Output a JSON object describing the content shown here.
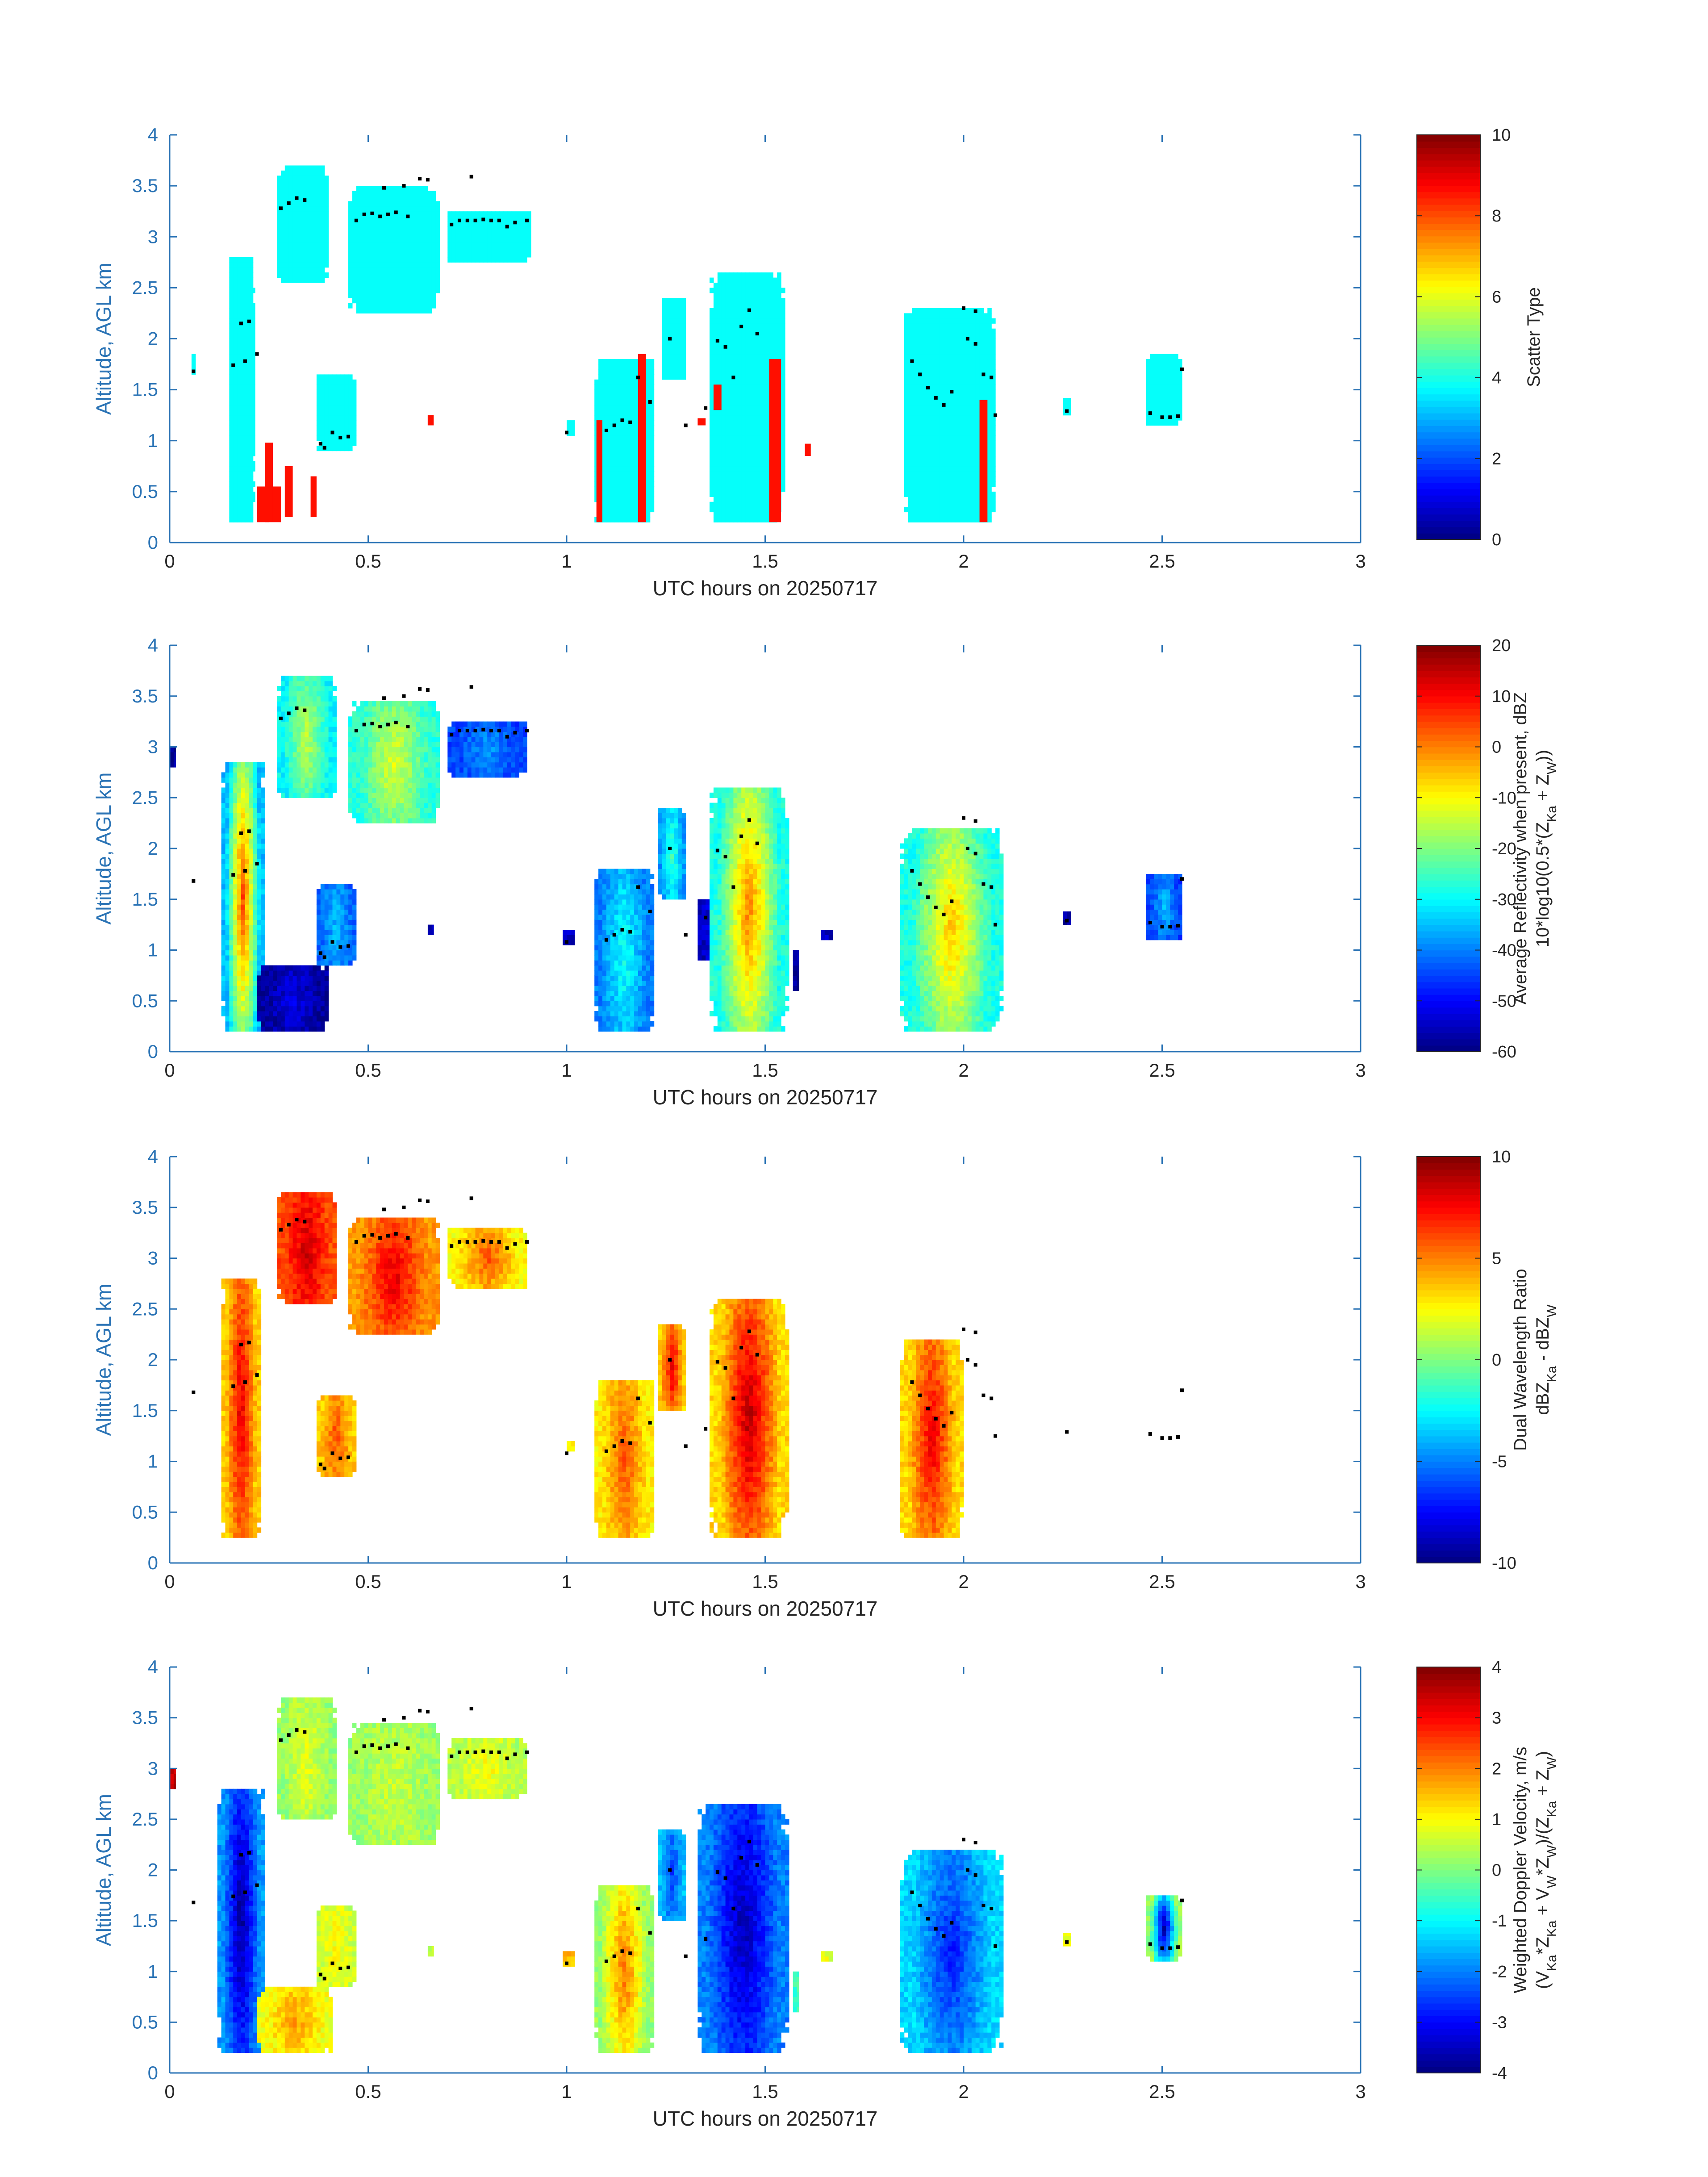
{
  "common": {
    "xlabel": "UTC hours on 20250717",
    "ylabel": "Altitude, AGL km",
    "xlim": [
      0,
      3
    ],
    "ylim": [
      0,
      4
    ],
    "xticks": [
      0,
      0.5,
      1,
      1.5,
      2,
      2.5,
      3
    ],
    "xtick_labels": [
      "0",
      "0.5",
      "1",
      "1.5",
      "2",
      "2.5",
      "3"
    ],
    "yticks": [
      0,
      0.5,
      1,
      1.5,
      2,
      2.5,
      3,
      3.5,
      4
    ],
    "ytick_labels": [
      "0",
      "0.5",
      "1",
      "1.5",
      "2",
      "2.5",
      "3",
      "3.5",
      "4"
    ],
    "colormap": "jet",
    "axis_color": "#2a73b5"
  },
  "chart_data": [
    {
      "type": "heatmap",
      "field": "scatter_type",
      "colorbar_label_lines": [
        "Scatter Type"
      ],
      "clim": [
        0,
        10
      ],
      "cb_ticks": [
        0,
        2,
        4,
        6,
        8,
        10
      ],
      "cb_tick_labels": [
        "0",
        "2",
        "4",
        "6",
        "8",
        "10"
      ],
      "regions": [
        {
          "x": [
            0.15,
            0.215
          ],
          "y": [
            0.2,
            2.8
          ],
          "value": 3.8
        },
        {
          "x": [
            0.055,
            0.065
          ],
          "y": [
            1.65,
            1.85
          ],
          "value": 3.8
        },
        {
          "x": [
            0.27,
            0.4
          ],
          "y": [
            2.55,
            3.7
          ],
          "value": 3.8
        },
        {
          "x": [
            0.45,
            0.68
          ],
          "y": [
            2.25,
            3.5
          ],
          "value": 3.8
        },
        {
          "x": [
            0.7,
            0.91
          ],
          "y": [
            2.75,
            3.25
          ],
          "value": 3.8
        },
        {
          "x": [
            0.37,
            0.47
          ],
          "y": [
            0.9,
            1.65
          ],
          "value": 3.8
        },
        {
          "x": [
            1.07,
            1.22
          ],
          "y": [
            0.2,
            1.8
          ],
          "value": 3.8
        },
        {
          "x": [
            1.24,
            1.3
          ],
          "y": [
            1.6,
            2.4
          ],
          "value": 3.8
        },
        {
          "x": [
            1.36,
            1.55
          ],
          "y": [
            0.2,
            2.65
          ],
          "value": 3.8
        },
        {
          "x": [
            1.85,
            2.08
          ],
          "y": [
            0.2,
            2.3
          ],
          "value": 3.8
        },
        {
          "x": [
            2.25,
            2.27
          ],
          "y": [
            1.25,
            1.42
          ],
          "value": 3.8
        },
        {
          "x": [
            2.46,
            2.55
          ],
          "y": [
            1.15,
            1.85
          ],
          "value": 3.8
        },
        {
          "x": [
            1.0,
            1.02
          ],
          "y": [
            1.05,
            1.2
          ],
          "value": 3.8
        }
      ],
      "patches": [
        {
          "x": [
            0.22,
            0.25
          ],
          "y": [
            0.2,
            0.55
          ],
          "value": 8.6
        },
        {
          "x": [
            0.24,
            0.26
          ],
          "y": [
            0.2,
            0.98
          ],
          "value": 8.6
        },
        {
          "x": [
            0.26,
            0.28
          ],
          "y": [
            0.2,
            0.55
          ],
          "value": 8.6
        },
        {
          "x": [
            0.29,
            0.31
          ],
          "y": [
            0.25,
            0.75
          ],
          "value": 8.6
        },
        {
          "x": [
            0.355,
            0.37
          ],
          "y": [
            0.25,
            0.65
          ],
          "value": 8.6
        },
        {
          "x": [
            0.65,
            0.665
          ],
          "y": [
            1.15,
            1.25
          ],
          "value": 8.6
        },
        {
          "x": [
            1.075,
            1.09
          ],
          "y": [
            0.2,
            1.2
          ],
          "value": 8.6
        },
        {
          "x": [
            1.18,
            1.2
          ],
          "y": [
            0.2,
            1.85
          ],
          "value": 8.6
        },
        {
          "x": [
            1.33,
            1.35
          ],
          "y": [
            1.15,
            1.22
          ],
          "value": 8.6
        },
        {
          "x": [
            1.37,
            1.39
          ],
          "y": [
            1.3,
            1.55
          ],
          "value": 8.6
        },
        {
          "x": [
            1.51,
            1.54
          ],
          "y": [
            0.2,
            1.8
          ],
          "value": 8.6
        },
        {
          "x": [
            1.6,
            1.615
          ],
          "y": [
            0.85,
            0.97
          ],
          "value": 8.6
        },
        {
          "x": [
            2.04,
            2.06
          ],
          "y": [
            0.2,
            1.4
          ],
          "value": 8.6
        }
      ]
    },
    {
      "type": "heatmap",
      "field": "average_reflectivity",
      "colorbar_label_lines": [
        "Average Reflectivity when present, dBZ",
        "10*log10(0.5*(Z_Ka + Z_W))"
      ],
      "clim": [
        -60,
        20
      ],
      "cb_ticks": [
        -60,
        -50,
        -40,
        -30,
        -20,
        -10,
        0,
        10,
        20
      ],
      "cb_tick_labels": [
        "-60",
        "-50",
        "-40",
        "-30",
        "-20",
        "-10",
        "0",
        "10",
        "20"
      ],
      "regions": [
        {
          "x": [
            0.0,
            0.015
          ],
          "y": [
            2.8,
            3.0
          ],
          "value": -58,
          "peak": -58
        },
        {
          "x": [
            0.13,
            0.24
          ],
          "y": [
            0.2,
            2.85
          ],
          "value": -35,
          "peak": 5
        },
        {
          "x": [
            0.22,
            0.4
          ],
          "y": [
            0.2,
            0.85
          ],
          "value": -58,
          "peak": -52
        },
        {
          "x": [
            0.27,
            0.42
          ],
          "y": [
            2.5,
            3.7
          ],
          "value": -30,
          "peak": -15
        },
        {
          "x": [
            0.45,
            0.68
          ],
          "y": [
            2.25,
            3.45
          ],
          "value": -27,
          "peak": -12
        },
        {
          "x": [
            0.7,
            0.9
          ],
          "y": [
            2.7,
            3.25
          ],
          "value": -45,
          "peak": -38
        },
        {
          "x": [
            0.37,
            0.47
          ],
          "y": [
            0.85,
            1.65
          ],
          "value": -42,
          "peak": -35
        },
        {
          "x": [
            0.65,
            0.665
          ],
          "y": [
            1.15,
            1.25
          ],
          "value": -55,
          "peak": -55
        },
        {
          "x": [
            0.99,
            1.02
          ],
          "y": [
            1.05,
            1.2
          ],
          "value": -55,
          "peak": -55
        },
        {
          "x": [
            1.07,
            1.22
          ],
          "y": [
            0.2,
            1.8
          ],
          "value": -40,
          "peak": -28
        },
        {
          "x": [
            1.23,
            1.3
          ],
          "y": [
            1.5,
            2.4
          ],
          "value": -38,
          "peak": -25
        },
        {
          "x": [
            1.33,
            1.45
          ],
          "y": [
            0.9,
            1.5
          ],
          "value": -55,
          "peak": -45
        },
        {
          "x": [
            1.36,
            1.56
          ],
          "y": [
            0.2,
            2.6
          ],
          "value": -28,
          "peak": 0
        },
        {
          "x": [
            1.64,
            1.67
          ],
          "y": [
            1.1,
            1.2
          ],
          "value": -55,
          "peak": -55
        },
        {
          "x": [
            1.57,
            1.585
          ],
          "y": [
            0.6,
            1.0
          ],
          "value": -58,
          "peak": -58
        },
        {
          "x": [
            1.84,
            2.1
          ],
          "y": [
            0.2,
            2.2
          ],
          "value": -28,
          "peak": -5
        },
        {
          "x": [
            2.25,
            2.27
          ],
          "y": [
            1.25,
            1.38
          ],
          "value": -58,
          "peak": -58
        },
        {
          "x": [
            2.46,
            2.55
          ],
          "y": [
            1.1,
            1.75
          ],
          "value": -45,
          "peak": -35
        }
      ]
    },
    {
      "type": "heatmap",
      "field": "dual_wavelength_ratio",
      "colorbar_label_lines": [
        "Dual Wavelength Ratio",
        "dBZ_Ka - dBZ_W"
      ],
      "clim": [
        -10,
        10
      ],
      "cb_ticks": [
        -10,
        -5,
        0,
        5,
        10
      ],
      "cb_tick_labels": [
        "-10",
        "-5",
        "0",
        "5",
        "10"
      ],
      "regions": [
        {
          "x": [
            0.13,
            0.23
          ],
          "y": [
            0.25,
            2.8
          ],
          "value": 3.5,
          "peak": 8
        },
        {
          "x": [
            0.27,
            0.42
          ],
          "y": [
            2.55,
            3.65
          ],
          "value": 6.0,
          "peak": 8.5
        },
        {
          "x": [
            0.45,
            0.68
          ],
          "y": [
            2.25,
            3.4
          ],
          "value": 4.5,
          "peak": 8
        },
        {
          "x": [
            0.7,
            0.9
          ],
          "y": [
            2.7,
            3.3
          ],
          "value": 2.5,
          "peak": 6
        },
        {
          "x": [
            0.37,
            0.47
          ],
          "y": [
            0.85,
            1.65
          ],
          "value": 3.5,
          "peak": 6
        },
        {
          "x": [
            1.0,
            1.02
          ],
          "y": [
            1.1,
            1.2
          ],
          "value": 3.0,
          "peak": 3
        },
        {
          "x": [
            1.07,
            1.22
          ],
          "y": [
            0.25,
            1.8
          ],
          "value": 2.8,
          "peak": 6
        },
        {
          "x": [
            1.23,
            1.3
          ],
          "y": [
            1.5,
            2.35
          ],
          "value": 3.5,
          "peak": 8
        },
        {
          "x": [
            1.36,
            1.56
          ],
          "y": [
            0.25,
            2.6
          ],
          "value": 3.2,
          "peak": 9
        },
        {
          "x": [
            1.84,
            2.0
          ],
          "y": [
            0.25,
            2.2
          ],
          "value": 3.2,
          "peak": 8
        }
      ]
    },
    {
      "type": "heatmap",
      "field": "weighted_doppler_velocity",
      "colorbar_label_lines": [
        "Weighted Doppler Velocity, m/s",
        "(V_Ka*Z_Ka + V_W*Z_W)/(Z_Ka + Z_W)"
      ],
      "clim": [
        -4,
        4
      ],
      "cb_ticks": [
        -4,
        -3,
        -2,
        -1,
        0,
        1,
        2,
        3,
        4
      ],
      "cb_tick_labels": [
        "-4",
        "-3",
        "-2",
        "-1",
        "0",
        "1",
        "2",
        "3",
        "4"
      ],
      "regions": [
        {
          "x": [
            0.0,
            0.015
          ],
          "y": [
            2.8,
            3.0
          ],
          "value": 3.5,
          "peak": 3.5
        },
        {
          "x": [
            0.12,
            0.24
          ],
          "y": [
            0.2,
            2.8
          ],
          "value": -1.8,
          "peak": -3.8
        },
        {
          "x": [
            0.22,
            0.41
          ],
          "y": [
            0.2,
            0.85
          ],
          "value": 0.9,
          "peak": 1.8
        },
        {
          "x": [
            0.27,
            0.42
          ],
          "y": [
            2.5,
            3.7
          ],
          "value": 0.2,
          "peak": 0.8
        },
        {
          "x": [
            0.45,
            0.68
          ],
          "y": [
            2.25,
            3.45
          ],
          "value": 0.2,
          "peak": 0.6
        },
        {
          "x": [
            0.7,
            0.9
          ],
          "y": [
            2.7,
            3.3
          ],
          "value": 0.4,
          "peak": 1.0
        },
        {
          "x": [
            0.37,
            0.47
          ],
          "y": [
            0.85,
            1.65
          ],
          "value": 0.6,
          "peak": 1.0
        },
        {
          "x": [
            0.65,
            0.665
          ],
          "y": [
            1.15,
            1.25
          ],
          "value": 0.6,
          "peak": 0.6
        },
        {
          "x": [
            0.99,
            1.02
          ],
          "y": [
            1.05,
            1.2
          ],
          "value": 1.5,
          "peak": 1.5
        },
        {
          "x": [
            1.07,
            1.22
          ],
          "y": [
            0.2,
            1.85
          ],
          "value": 0.2,
          "peak": 2.2
        },
        {
          "x": [
            1.23,
            1.3
          ],
          "y": [
            1.5,
            2.4
          ],
          "value": -1.5,
          "peak": -2.5
        },
        {
          "x": [
            1.33,
            1.56
          ],
          "y": [
            0.2,
            2.65
          ],
          "value": -2.0,
          "peak": -3.6
        },
        {
          "x": [
            1.57,
            1.585
          ],
          "y": [
            0.6,
            1.0
          ],
          "value": -0.5,
          "peak": -0.5
        },
        {
          "x": [
            1.64,
            1.67
          ],
          "y": [
            1.1,
            1.2
          ],
          "value": 0.8,
          "peak": 0.8
        },
        {
          "x": [
            1.84,
            2.1
          ],
          "y": [
            0.2,
            2.2
          ],
          "value": -1.3,
          "peak": -2.8
        },
        {
          "x": [
            2.25,
            2.27
          ],
          "y": [
            1.25,
            1.38
          ],
          "value": 0.8,
          "peak": 0.8
        },
        {
          "x": [
            2.46,
            2.55
          ],
          "y": [
            1.1,
            1.75
          ],
          "value": 0.2,
          "peak": -3.8
        }
      ]
    }
  ],
  "markers": {
    "note_in_image": "black dots overlaid on every panel",
    "points": [
      [
        0.06,
        1.68
      ],
      [
        0.16,
        1.74
      ],
      [
        0.18,
        2.15
      ],
      [
        0.19,
        1.78
      ],
      [
        0.2,
        2.17
      ],
      [
        0.22,
        1.85
      ],
      [
        0.28,
        3.28
      ],
      [
        0.3,
        3.33
      ],
      [
        0.32,
        3.38
      ],
      [
        0.34,
        3.36
      ],
      [
        0.38,
        0.97
      ],
      [
        0.39,
        0.93
      ],
      [
        0.41,
        1.08
      ],
      [
        0.43,
        1.03
      ],
      [
        0.45,
        1.04
      ],
      [
        0.47,
        3.16
      ],
      [
        0.49,
        3.22
      ],
      [
        0.51,
        3.23
      ],
      [
        0.53,
        3.2
      ],
      [
        0.55,
        3.22
      ],
      [
        0.57,
        3.24
      ],
      [
        0.54,
        3.48
      ],
      [
        0.6,
        3.2
      ],
      [
        0.59,
        3.5
      ],
      [
        0.63,
        3.57
      ],
      [
        0.65,
        3.56
      ],
      [
        0.71,
        3.12
      ],
      [
        0.73,
        3.16
      ],
      [
        0.75,
        3.16
      ],
      [
        0.77,
        3.16
      ],
      [
        0.79,
        3.17
      ],
      [
        0.81,
        3.16
      ],
      [
        0.83,
        3.16
      ],
      [
        0.85,
        3.1
      ],
      [
        0.87,
        3.14
      ],
      [
        0.9,
        3.16
      ],
      [
        0.76,
        3.59
      ],
      [
        1.0,
        1.08
      ],
      [
        1.1,
        1.1
      ],
      [
        1.12,
        1.15
      ],
      [
        1.14,
        1.2
      ],
      [
        1.16,
        1.18
      ],
      [
        1.18,
        1.62
      ],
      [
        1.21,
        1.38
      ],
      [
        1.26,
        2.0
      ],
      [
        1.3,
        1.15
      ],
      [
        1.35,
        1.32
      ],
      [
        1.38,
        1.98
      ],
      [
        1.4,
        1.92
      ],
      [
        1.42,
        1.62
      ],
      [
        1.44,
        2.12
      ],
      [
        1.46,
        2.28
      ],
      [
        1.48,
        2.05
      ],
      [
        1.87,
        1.78
      ],
      [
        1.89,
        1.65
      ],
      [
        1.91,
        1.52
      ],
      [
        1.93,
        1.42
      ],
      [
        1.95,
        1.35
      ],
      [
        1.97,
        1.48
      ],
      [
        2.0,
        2.3
      ],
      [
        2.01,
        2.0
      ],
      [
        2.03,
        1.95
      ],
      [
        2.05,
        1.65
      ],
      [
        2.07,
        1.62
      ],
      [
        2.08,
        1.25
      ],
      [
        2.03,
        2.27
      ],
      [
        2.26,
        1.29
      ],
      [
        2.47,
        1.27
      ],
      [
        2.5,
        1.23
      ],
      [
        2.52,
        1.23
      ],
      [
        2.54,
        1.24
      ],
      [
        2.55,
        1.7
      ]
    ]
  }
}
